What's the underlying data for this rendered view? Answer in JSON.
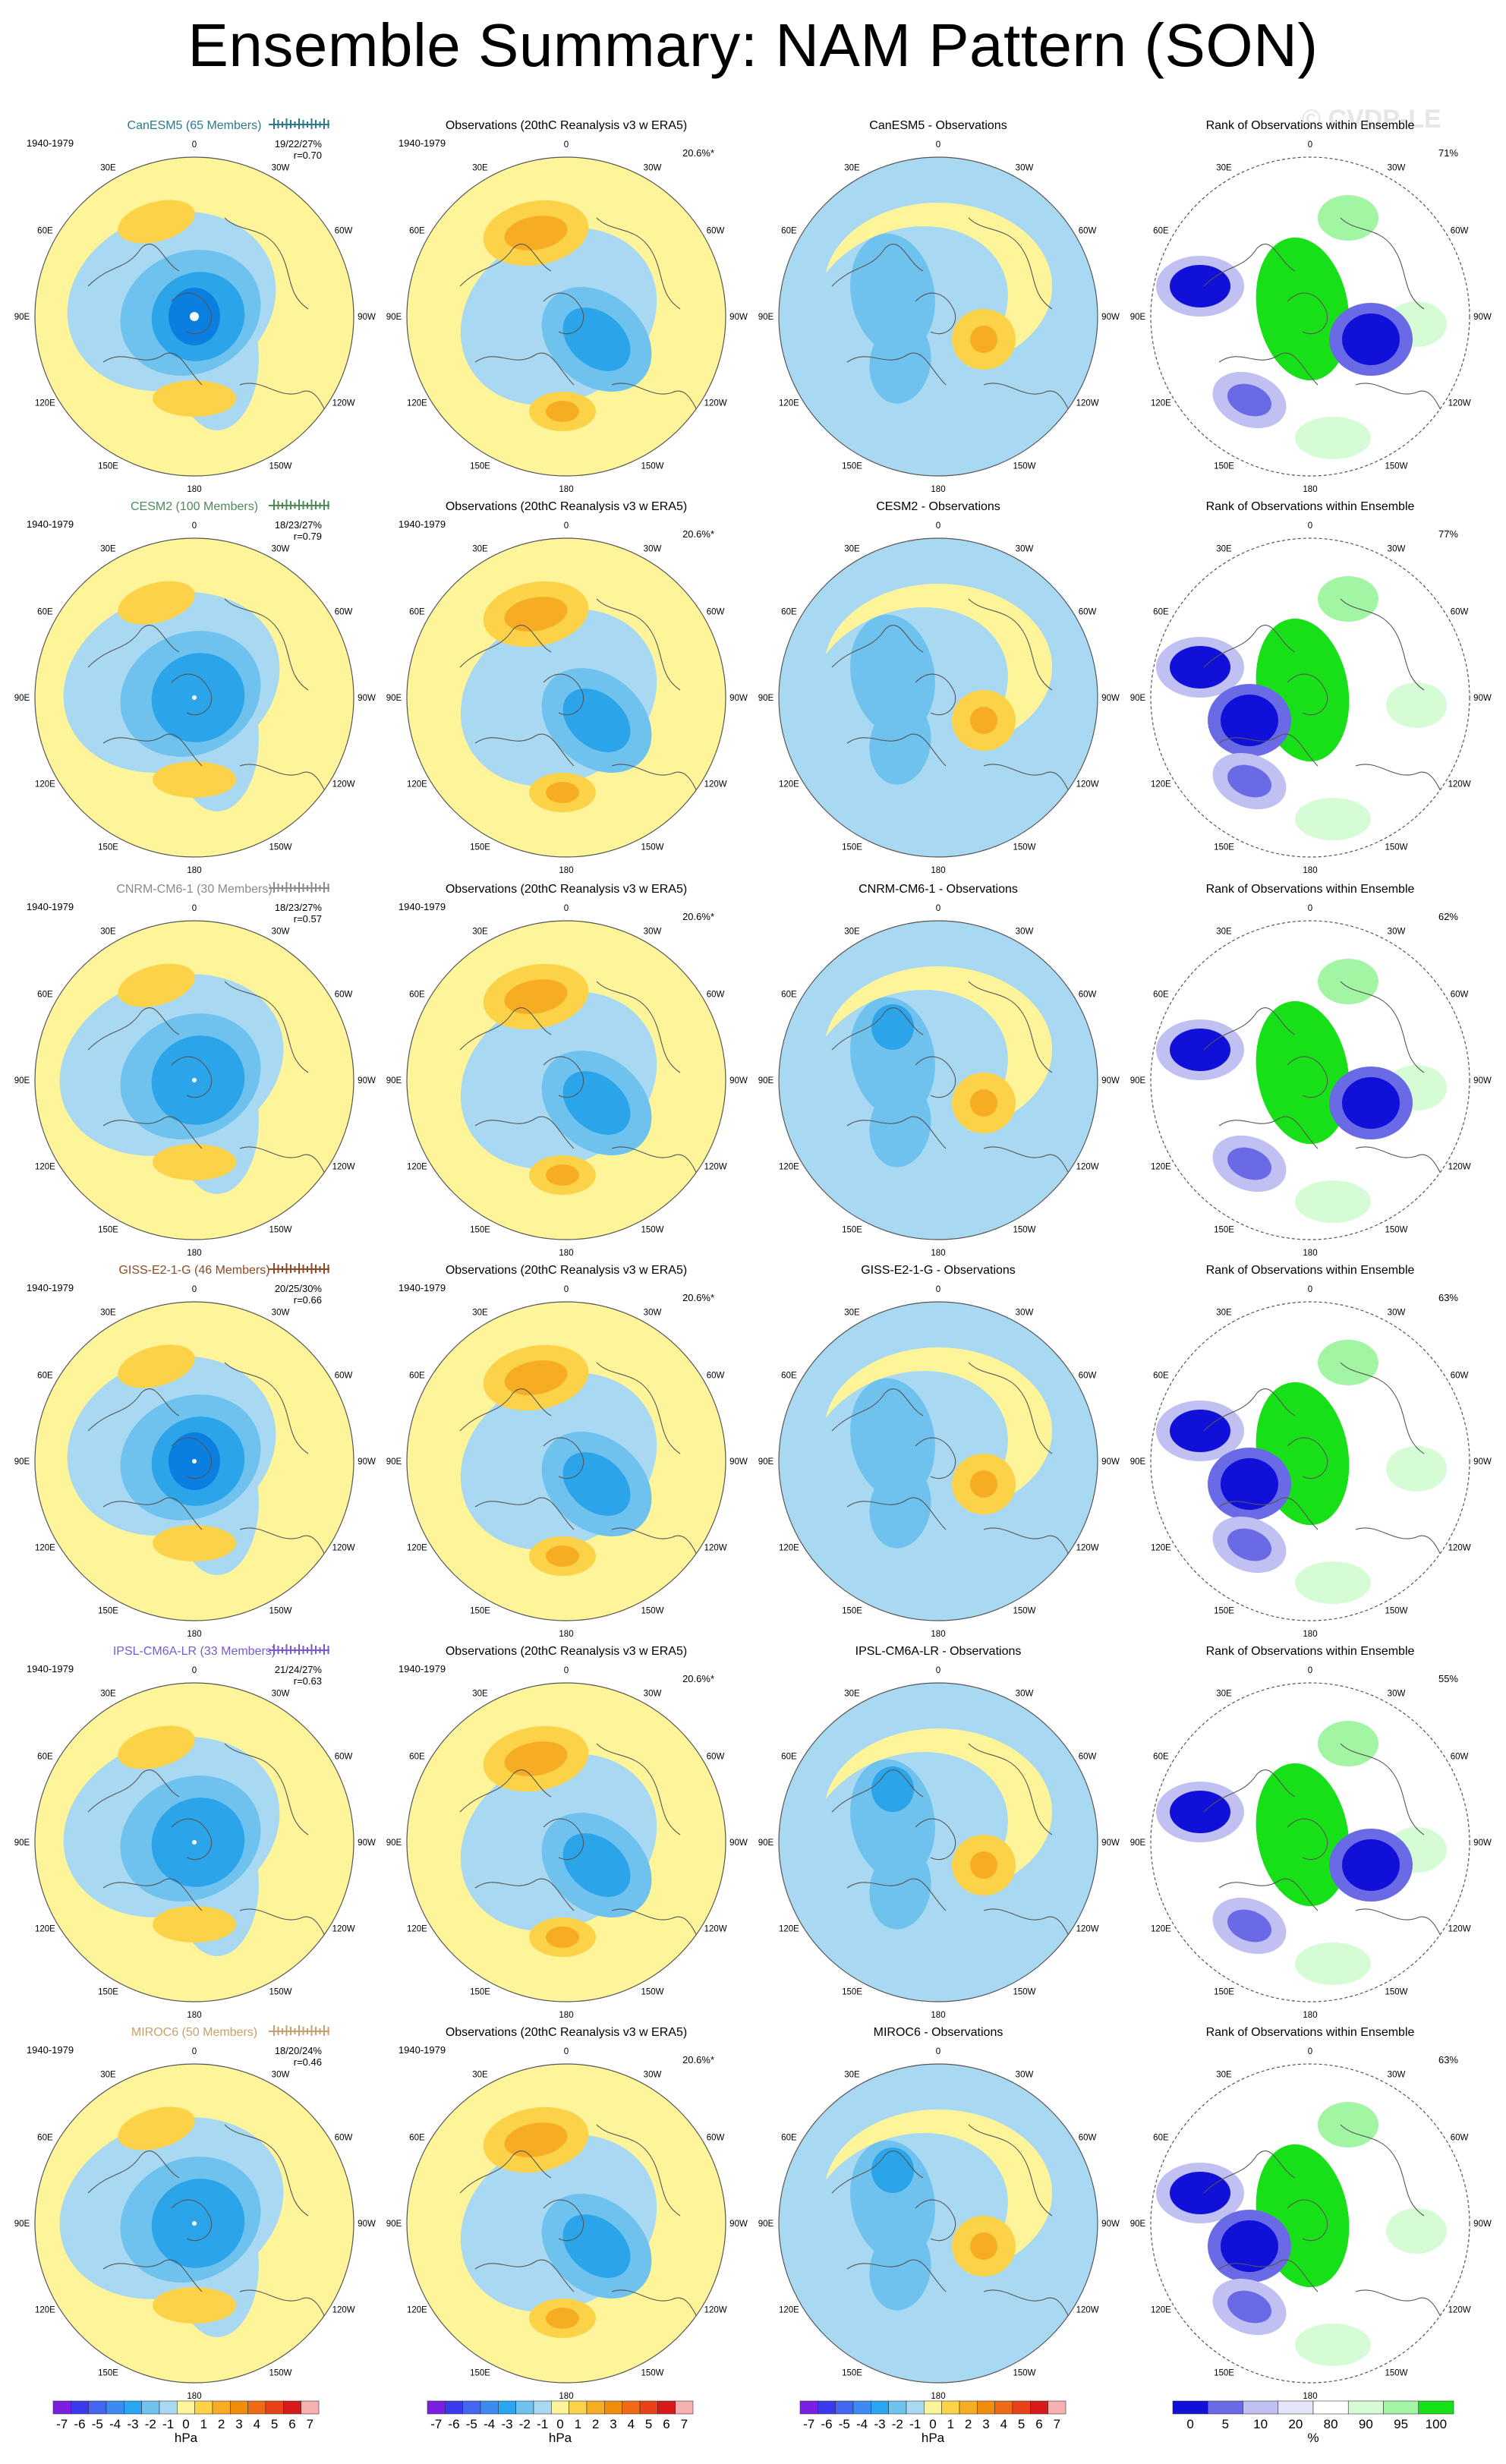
{
  "title": "Ensemble Summary: NAM Pattern (SON)",
  "watermark": "© CVDP-LE",
  "colors": {
    "blue_pale": "#a9d9f2",
    "blue_mid": "#6fc2ee",
    "blue_strong": "#2ba4ea",
    "blue_deep": "#0a7fe0",
    "yellow": "#fef49a",
    "orange_light": "#fcd348",
    "orange": "#f7ad23",
    "orange_deep": "#f08c0e",
    "rank_blue_deep": "#1010d8",
    "rank_blue_mid": "#6a6ae6",
    "rank_blue_light": "#c0c0f2",
    "rank_blue_pale": "#e6e6fa",
    "rank_green_pale": "#d6fcd6",
    "rank_green_light": "#a2f5a2",
    "rank_green": "#18e018"
  },
  "lon_labels": [
    "180",
    "150E",
    "120E",
    "90E",
    "60E",
    "30E",
    "0",
    "30W",
    "60W",
    "90W",
    "120W",
    "150W"
  ],
  "obs_header": "Observations (20thC Reanalysis v3 w ERA5)",
  "obs_period": "1940-1979",
  "obs_pct": "20.6%*",
  "rank_header": "Rank of Observations within Ensemble",
  "colorbar_hpa": {
    "labels": [
      "-7",
      "-6",
      "-5",
      "-4",
      "-3",
      "-2",
      "-1",
      "0",
      "1",
      "2",
      "3",
      "4",
      "5",
      "6",
      "7"
    ],
    "colors": [
      "#7b1fe0",
      "#3a3aec",
      "#4466f0",
      "#3d8af0",
      "#2aa6f0",
      "#6fc2ee",
      "#a9d9f2",
      "#fef49a",
      "#fcd348",
      "#f7ad23",
      "#f08c0e",
      "#ee6a14",
      "#e84218",
      "#d81a1a",
      "#f7b0b0"
    ],
    "unit": "hPa"
  },
  "colorbar_rank": {
    "labels": [
      "0",
      "5",
      "10",
      "20",
      "80",
      "90",
      "95",
      "100"
    ],
    "colors": [
      "#1010d8",
      "#6a6ae6",
      "#c0c0f2",
      "#e6e6fa",
      "#ffffff",
      "#d6fcd6",
      "#a2f5a2",
      "#18e018"
    ],
    "unit": "%"
  },
  "chart_data": {
    "type": "map",
    "projection": "polar stereographic, Northern Hemisphere",
    "field": "NAM pattern sea-level pressure regression (hPa), SON",
    "colorbar_levels_hpa": [
      -7,
      -6,
      -5,
      -4,
      -3,
      -2,
      -1,
      0,
      1,
      2,
      3,
      4,
      5,
      6,
      7
    ],
    "rank_levels_pct": [
      0,
      5,
      10,
      20,
      80,
      90,
      95,
      100
    ],
    "rows": [
      {
        "model": "CanESM5",
        "header": "CanESM5 (65 Members)",
        "header_color": "#2a7a8c",
        "period": "1940-1979",
        "stats": "19/22/27%",
        "corr": "r=0.70",
        "diff_header": "CanESM5 - Observations",
        "rank_pct": "71%"
      },
      {
        "model": "CESM2",
        "header": "CESM2 (100 Members)",
        "header_color": "#4c8a5a",
        "period": "1940-1979",
        "stats": "18/23/27%",
        "corr": "r=0.79",
        "diff_header": "CESM2 - Observations",
        "rank_pct": "77%"
      },
      {
        "model": "CNRM-CM6-1",
        "header": "CNRM-CM6-1 (30 Members)",
        "header_color": "#8a8a8a",
        "period": "1940-1979",
        "stats": "18/23/27%",
        "corr": "r=0.57",
        "diff_header": "CNRM-CM6-1 - Observations",
        "rank_pct": "62%"
      },
      {
        "model": "GISS-E2-1-G",
        "header": "GISS-E2-1-G (46 Members)",
        "header_color": "#8a4a24",
        "period": "1940-1979",
        "stats": "20/25/30%",
        "corr": "r=0.66",
        "diff_header": "GISS-E2-1-G - Observations",
        "rank_pct": "63%"
      },
      {
        "model": "IPSL-CM6A-LR",
        "header": "IPSL-CM6A-LR (33 Members)",
        "header_color": "#7a5ad0",
        "period": "1940-1979",
        "stats": "21/24/27%",
        "corr": "r=0.63",
        "diff_header": "IPSL-CM6A-LR - Observations",
        "rank_pct": "55%"
      },
      {
        "model": "MIROC6",
        "header": "MIROC6 (50 Members)",
        "header_color": "#c8a070",
        "period": "1940-1979",
        "stats": "18/20/24%",
        "corr": "r=0.46",
        "diff_header": "MIROC6 - Observations",
        "rank_pct": "63%"
      }
    ]
  }
}
